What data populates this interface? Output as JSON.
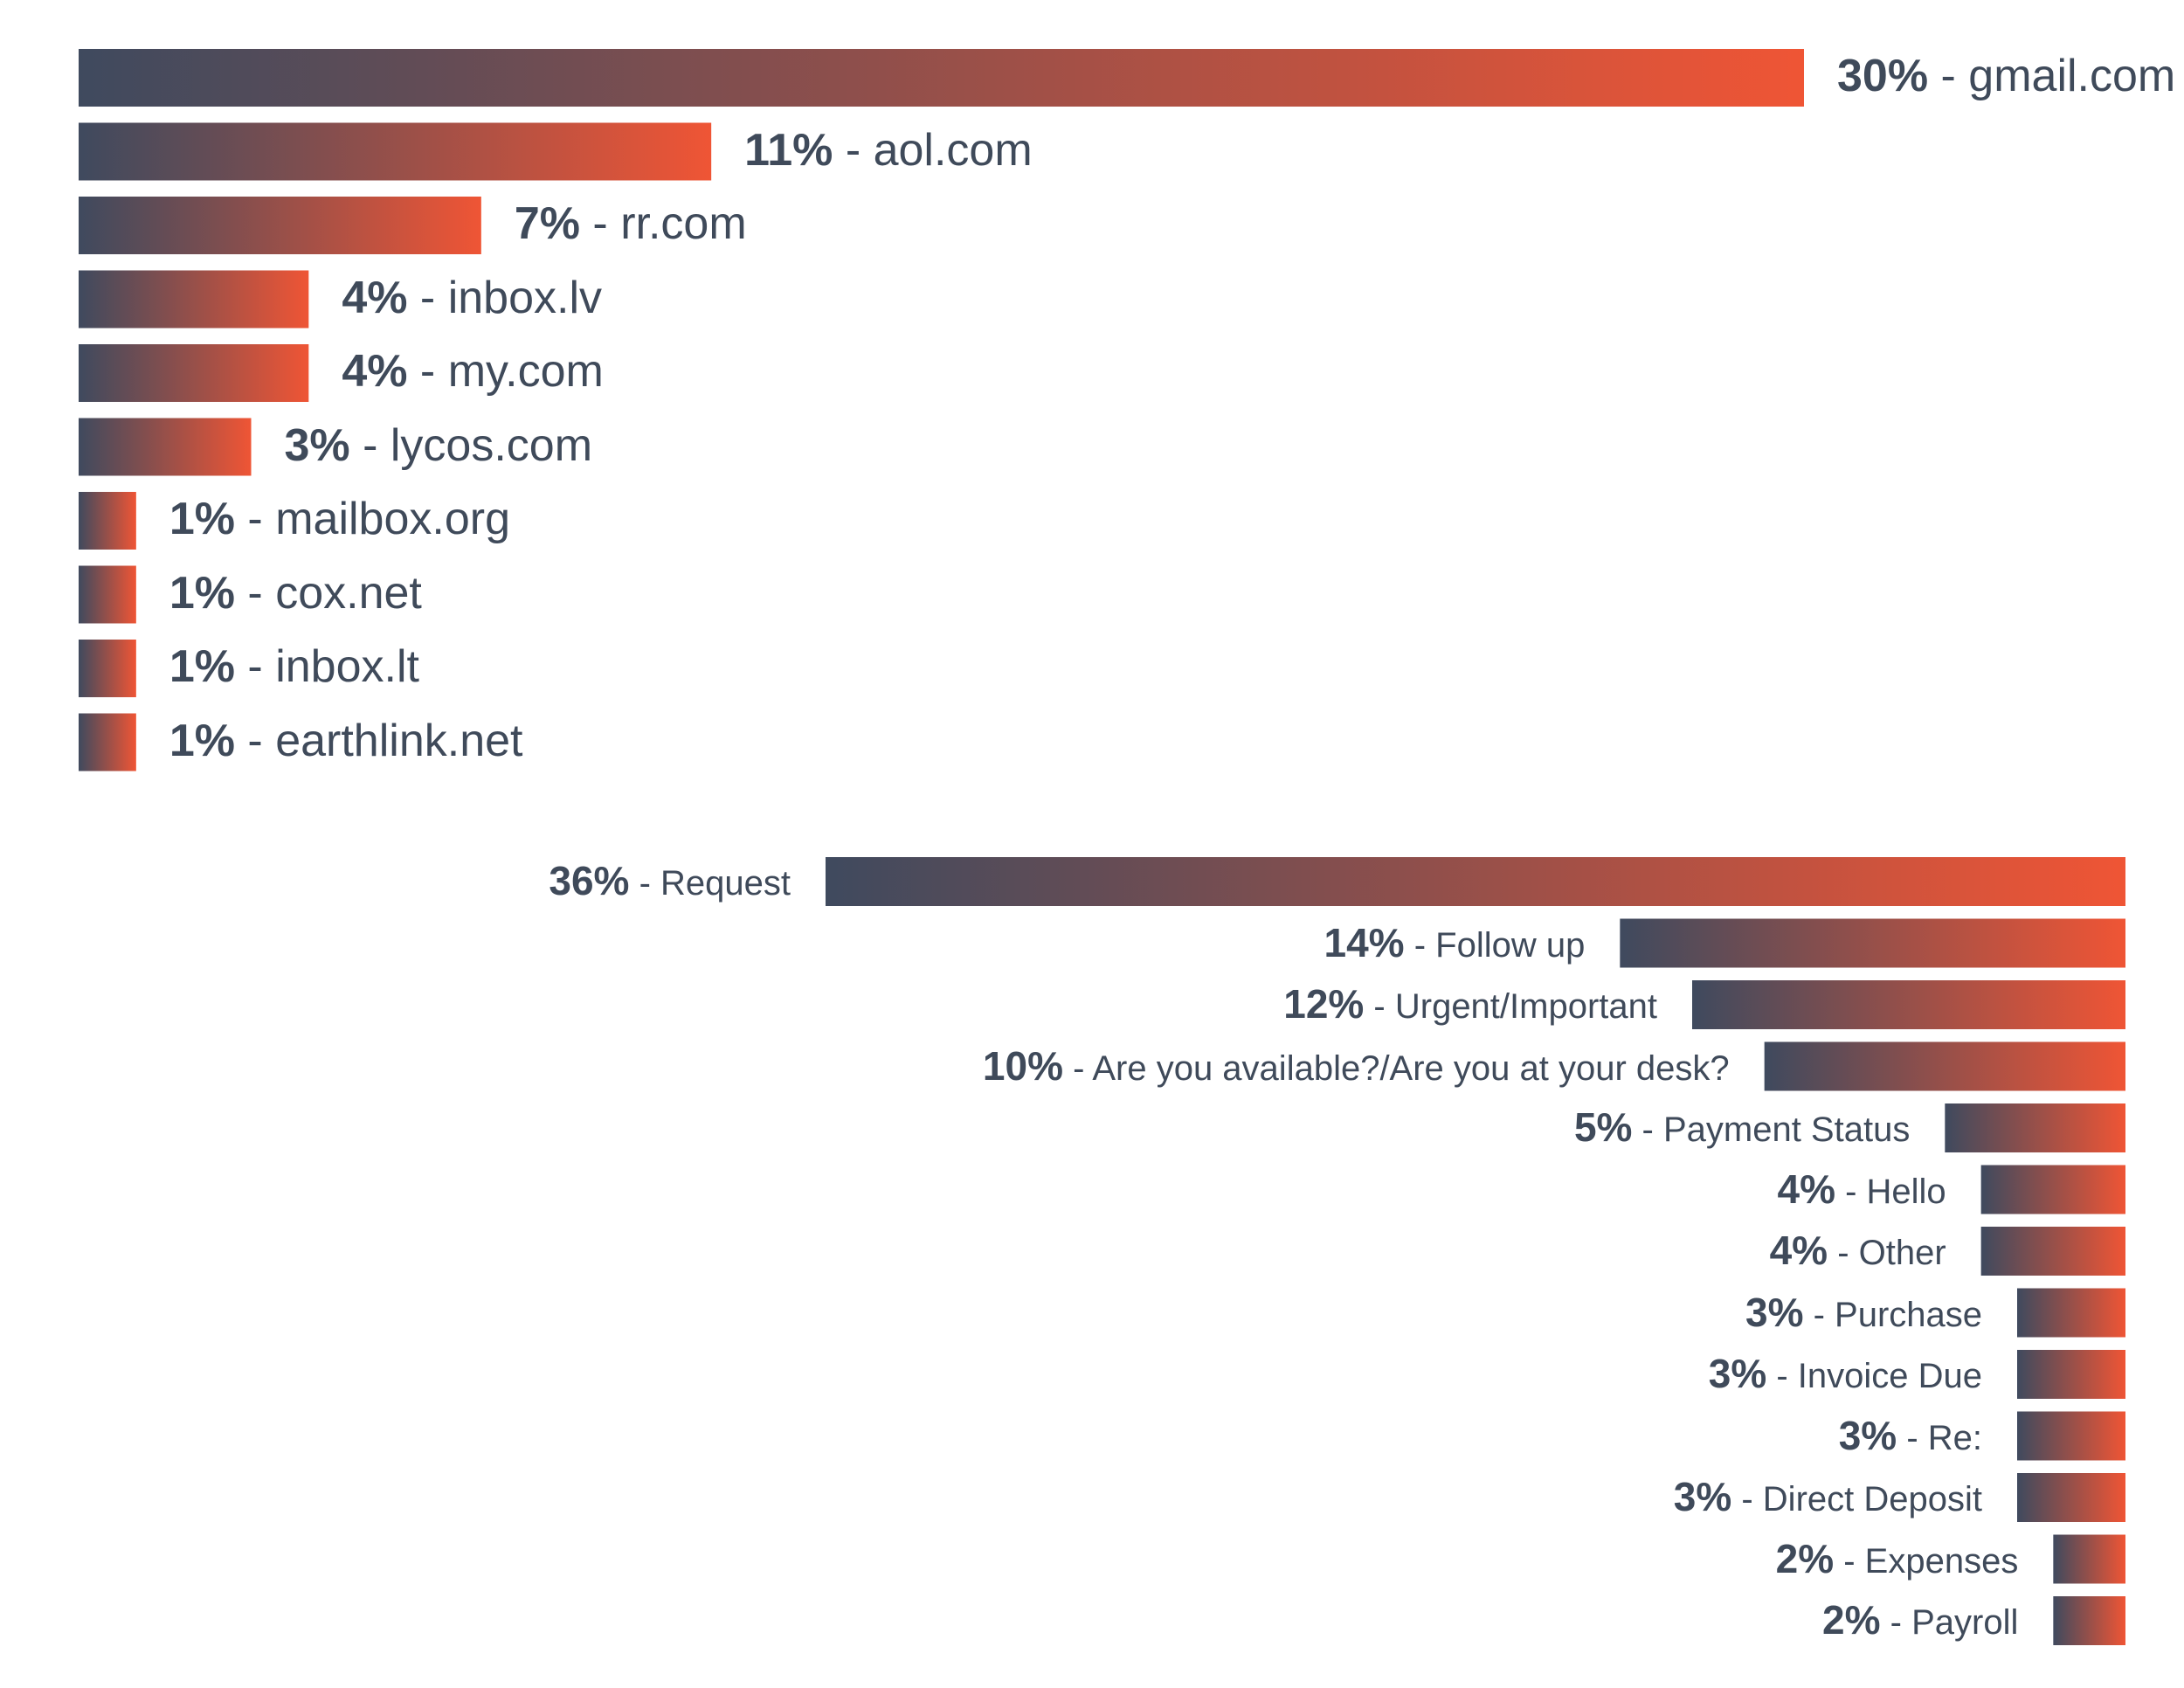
{
  "chart_data": [
    {
      "type": "bar",
      "orientation": "horizontal",
      "title": "",
      "xlabel": "",
      "ylabel": "",
      "grid": false,
      "legend": "none",
      "xlim": [
        0,
        30
      ],
      "separator": " - ",
      "categories": [
        "gmail.com",
        "aol.com",
        "rr.com",
        "inbox.lv",
        "my.com",
        "lycos.com",
        "mailbox.org",
        "cox.net",
        "inbox.lt",
        "earthlink.net"
      ],
      "values": [
        30,
        11,
        7,
        4,
        4,
        3,
        1,
        1,
        1,
        1
      ],
      "value_labels": [
        "30%",
        "11%",
        "7%",
        "4%",
        "4%",
        "3%",
        "1%",
        "1%",
        "1%",
        "1%"
      ],
      "gradient": [
        "#3f4a5e",
        "#ef5535"
      ]
    },
    {
      "type": "bar",
      "orientation": "horizontal",
      "title": "",
      "xlabel": "",
      "ylabel": "",
      "grid": false,
      "legend": "none",
      "xlim": [
        0,
        36
      ],
      "separator": " - ",
      "categories": [
        "Request",
        "Follow up",
        "Urgent/Important",
        "Are you available?/Are you at your desk?",
        "Payment Status",
        "Hello",
        "Other",
        "Purchase",
        "Invoice Due",
        "Re:",
        "Direct Deposit",
        "Expenses",
        "Payroll"
      ],
      "values": [
        36,
        14,
        12,
        10,
        5,
        4,
        4,
        3,
        3,
        3,
        3,
        2,
        2
      ],
      "value_labels": [
        "36%",
        "14%",
        "12%",
        "10%",
        "5%",
        "4%",
        "4%",
        "3%",
        "3%",
        "3%",
        "3%",
        "2%",
        "2%"
      ],
      "gradient": [
        "#3f4a5e",
        "#ef5535"
      ]
    }
  ]
}
